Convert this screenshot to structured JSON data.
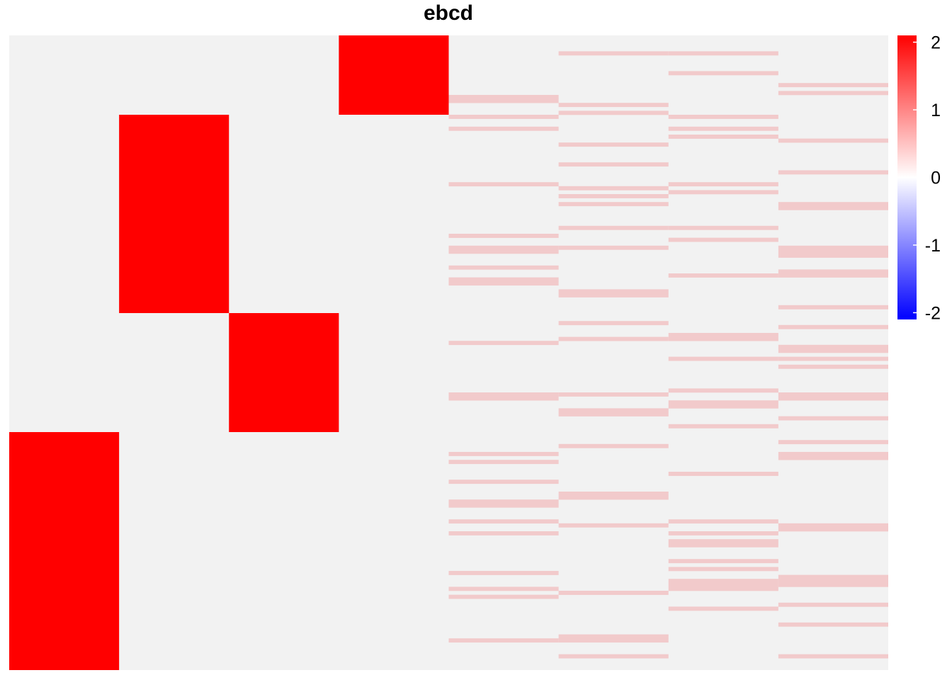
{
  "chart_data": {
    "type": "heatmap",
    "title": "ebcd",
    "n_rows": 160,
    "n_cols": 8,
    "background_value": 0,
    "colors": {
      "high": "#ff0000",
      "mid": "#f2f2f2",
      "low": "#0000ff",
      "weak_positive": "#f2cacb"
    },
    "color_scale": {
      "min": -2.1,
      "max": 2.1,
      "ticks": [
        2,
        1,
        0,
        -1,
        -2
      ]
    },
    "blocks": [
      {
        "col": 0,
        "row_start": 100,
        "row_end": 159,
        "value": 2.1
      },
      {
        "col": 1,
        "row_start": 20,
        "row_end": 69,
        "value": 2.1
      },
      {
        "col": 2,
        "row_start": 70,
        "row_end": 99,
        "value": 2.1
      },
      {
        "col": 3,
        "row_start": 0,
        "row_end": 19,
        "value": 2.1
      }
    ],
    "weak_rows": {
      "value": 0.45,
      "columns": [
        {
          "col": 4,
          "rows": [
            15,
            16,
            20,
            23,
            37,
            50,
            53,
            54,
            58,
            61,
            62,
            77,
            90,
            91,
            105,
            107,
            112,
            117,
            118,
            122,
            125,
            135,
            139,
            141,
            152
          ]
        },
        {
          "col": 5,
          "rows": [
            4,
            17,
            19,
            27,
            32,
            38,
            40,
            42,
            48,
            53,
            64,
            65,
            72,
            76,
            90,
            94,
            95,
            103,
            115,
            116,
            123,
            140,
            151,
            152,
            156
          ]
        },
        {
          "col": 6,
          "rows": [
            4,
            9,
            20,
            23,
            25,
            37,
            39,
            48,
            51,
            60,
            75,
            76,
            81,
            89,
            92,
            93,
            98,
            110,
            122,
            125,
            127,
            128,
            132,
            134,
            137,
            138,
            139,
            144
          ]
        },
        {
          "col": 7,
          "rows": [
            12,
            14,
            26,
            34,
            42,
            43,
            53,
            54,
            55,
            59,
            60,
            68,
            73,
            78,
            79,
            81,
            83,
            90,
            91,
            96,
            102,
            105,
            106,
            123,
            124,
            136,
            137,
            138,
            143,
            148,
            156
          ]
        }
      ]
    }
  }
}
